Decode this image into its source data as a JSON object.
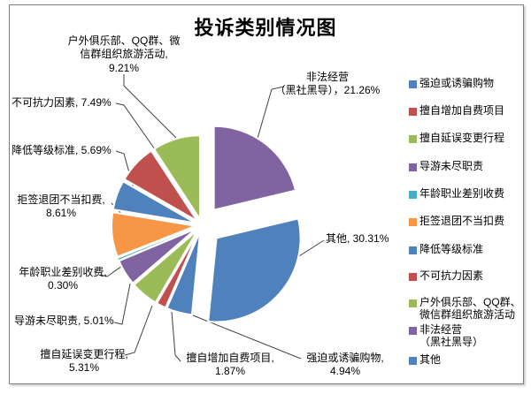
{
  "title": "投诉类别情况图",
  "theme_colors": {
    "blue": "#4F81BD",
    "red": "#C0504D",
    "green": "#9BBB59",
    "purple": "#8064A2",
    "cyan": "#4BACC6",
    "orange": "#F79646",
    "border_gray": "#7f7f7f",
    "leader_line": "#404040"
  },
  "chart_data": {
    "type": "pie",
    "title": "投诉类别情况图",
    "direction": "clockwise",
    "start_angle_deg": 0,
    "exploded": true,
    "legend_position": "right",
    "slices": [
      {
        "label": "非法经营（黑社黑导）",
        "value": 21.26,
        "color": "#8064A2",
        "callout": "非法经营\n（黑社黑导），21.26%"
      },
      {
        "label": "其他",
        "value": 30.31,
        "color": "#4F81BD",
        "callout": "其他, 30.31%"
      },
      {
        "label": "强迫或诱骗购物",
        "value": 4.94,
        "color": "#4F81BD",
        "callout": "强迫或诱骗购物,\n4.94%"
      },
      {
        "label": "擅自增加自费项目",
        "value": 1.87,
        "color": "#C0504D",
        "callout": "擅自增加自费项目,\n1.87%"
      },
      {
        "label": "擅自延误变更行程",
        "value": 5.31,
        "color": "#9BBB59",
        "callout": "擅自延误变更行程,\n5.31%"
      },
      {
        "label": "导游未尽职责",
        "value": 5.01,
        "color": "#8064A2",
        "callout": "导游未尽职责, 5.01%"
      },
      {
        "label": "年龄职业差别收费",
        "value": 0.3,
        "color": "#4BACC6",
        "callout": "年龄职业差别收费,\n0.30%"
      },
      {
        "label": "拒签退团不当扣费",
        "value": 8.61,
        "color": "#F79646",
        "callout": "拒签退团不当扣费,\n8.61%"
      },
      {
        "label": "降低等级标准",
        "value": 5.69,
        "color": "#4F81BD",
        "callout": "降低等级标准, 5.69%"
      },
      {
        "label": "不可抗力因素",
        "value": 7.49,
        "color": "#C0504D",
        "callout": "不可抗力因素, 7.49%"
      },
      {
        "label": "户外俱乐部、QQ群、微信群组织旅游活动",
        "value": 9.21,
        "color": "#9BBB59",
        "callout": "户外俱乐部、QQ群、微\n信群组织旅游活动,\n9.21%"
      }
    ],
    "legend_items": [
      {
        "label": "强迫或诱骗购物",
        "color": "#4F81BD"
      },
      {
        "label": "擅自增加自费项目",
        "color": "#C0504D"
      },
      {
        "label": "擅自延误变更行程",
        "color": "#9BBB59"
      },
      {
        "label": "导游未尽职责",
        "color": "#8064A2"
      },
      {
        "label": "年龄职业差别收费",
        "color": "#4BACC6"
      },
      {
        "label": "拒签退团不当扣费",
        "color": "#F79646"
      },
      {
        "label": "降低等级标准",
        "color": "#4F81BD"
      },
      {
        "label": "不可抗力因素",
        "color": "#C0504D"
      },
      {
        "label": "户外俱乐部、QQ群、\n微信群组织旅游活动",
        "color": "#9BBB59"
      },
      {
        "label": "非法经营\n（黑社黑导）",
        "color": "#8064A2"
      },
      {
        "label": "其他",
        "color": "#4F81BD"
      }
    ]
  }
}
